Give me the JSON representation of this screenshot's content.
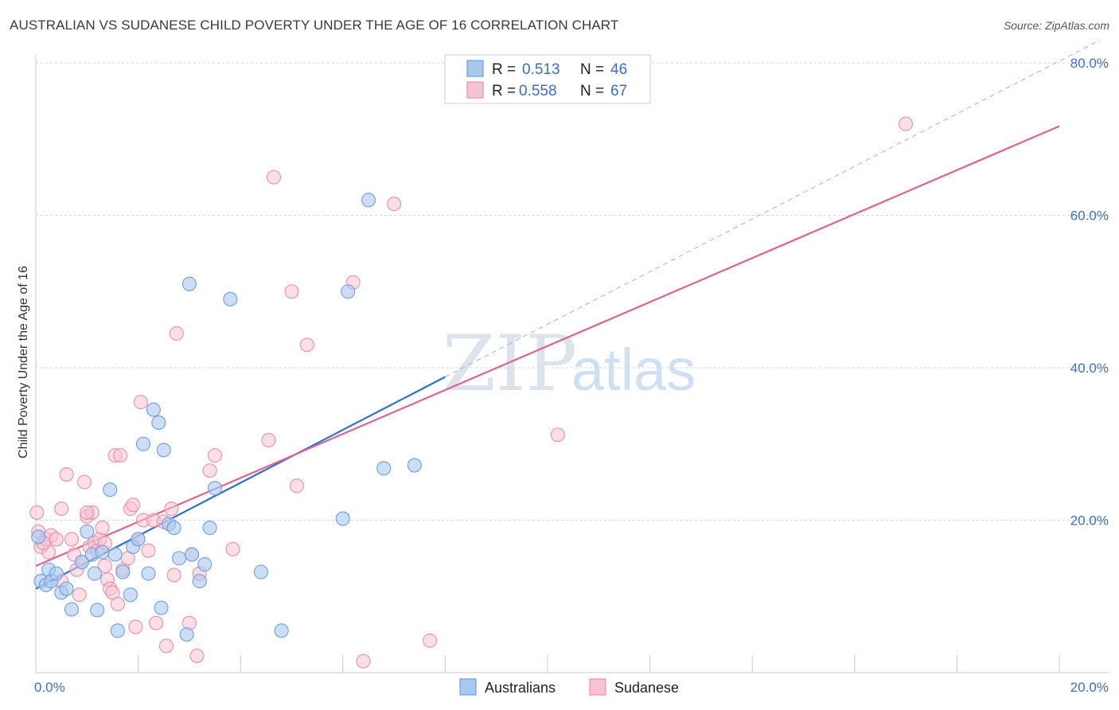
{
  "title": "AUSTRALIAN VS SUDANESE CHILD POVERTY UNDER THE AGE OF 16 CORRELATION CHART",
  "source": "Source: ZipAtlas.com",
  "watermark": {
    "part1": "ZIP",
    "part2": "atlas"
  },
  "colors": {
    "australians_fill": "#a9c8f0",
    "australians_stroke": "#6f9fdc",
    "australians_line": "#2f6fd0",
    "sudanese_fill": "#f7c3d2",
    "sudanese_stroke": "#ec8fab",
    "sudanese_line": "#e0628e",
    "tick_text": "#3b6fc7",
    "grid": "#d6d6d6"
  },
  "legend": {
    "r_label": "R =",
    "n_label": "N =",
    "rows": [
      {
        "series": "Australians",
        "r": "0.513",
        "n": "46"
      },
      {
        "series": "Sudanese",
        "r": "0.558",
        "n": "67"
      }
    ]
  },
  "chart_data": {
    "type": "scatter",
    "title": "AUSTRALIAN VS SUDANESE CHILD POVERTY UNDER THE AGE OF 16 CORRELATION CHART",
    "xlabel": "",
    "ylabel": "Child Poverty Under the Age of 16",
    "xlim": [
      0,
      20
    ],
    "ylim": [
      0,
      80
    ],
    "x_tick_labels": [
      "0.0%",
      "20.0%"
    ],
    "y_ticks": [
      20,
      40,
      60,
      80
    ],
    "y_tick_labels": [
      "20.0%",
      "40.0%",
      "60.0%",
      "80.0%"
    ],
    "series": [
      {
        "name": "Australians",
        "points": [
          [
            0.05,
            17.8
          ],
          [
            0.1,
            12.0
          ],
          [
            0.2,
            11.5
          ],
          [
            0.25,
            13.5
          ],
          [
            0.3,
            12.0
          ],
          [
            0.4,
            13.0
          ],
          [
            0.5,
            10.5
          ],
          [
            0.6,
            11.0
          ],
          [
            0.7,
            8.3
          ],
          [
            0.9,
            14.5
          ],
          [
            1.0,
            18.5
          ],
          [
            1.1,
            15.5
          ],
          [
            1.15,
            13.0
          ],
          [
            1.2,
            8.2
          ],
          [
            1.3,
            15.8
          ],
          [
            1.45,
            24.0
          ],
          [
            1.55,
            15.5
          ],
          [
            1.6,
            5.5
          ],
          [
            1.7,
            13.2
          ],
          [
            1.85,
            10.2
          ],
          [
            1.9,
            16.5
          ],
          [
            2.0,
            17.5
          ],
          [
            2.1,
            30.0
          ],
          [
            2.2,
            13.0
          ],
          [
            2.3,
            34.5
          ],
          [
            2.4,
            32.8
          ],
          [
            2.45,
            8.5
          ],
          [
            2.5,
            29.2
          ],
          [
            2.6,
            19.5
          ],
          [
            2.7,
            19.0
          ],
          [
            2.8,
            15.0
          ],
          [
            2.95,
            5.0
          ],
          [
            3.0,
            51.0
          ],
          [
            3.05,
            15.5
          ],
          [
            3.2,
            12.0
          ],
          [
            3.3,
            14.2
          ],
          [
            3.4,
            19.0
          ],
          [
            3.5,
            24.2
          ],
          [
            3.8,
            49.0
          ],
          [
            4.4,
            13.2
          ],
          [
            4.8,
            5.5
          ],
          [
            6.0,
            20.2
          ],
          [
            6.1,
            50.0
          ],
          [
            6.5,
            62.0
          ],
          [
            6.8,
            26.8
          ],
          [
            7.4,
            27.2
          ]
        ]
      },
      {
        "name": "Sudanese",
        "points": [
          [
            0.02,
            21.0
          ],
          [
            0.05,
            18.5
          ],
          [
            0.1,
            16.5
          ],
          [
            0.2,
            17.5
          ],
          [
            0.25,
            15.8
          ],
          [
            0.3,
            18.0
          ],
          [
            0.4,
            17.5
          ],
          [
            0.5,
            12.0
          ],
          [
            0.5,
            21.5
          ],
          [
            0.6,
            26.0
          ],
          [
            0.7,
            17.5
          ],
          [
            0.75,
            15.5
          ],
          [
            0.8,
            13.5
          ],
          [
            0.85,
            10.2
          ],
          [
            0.9,
            14.5
          ],
          [
            0.95,
            25.0
          ],
          [
            1.0,
            20.5
          ],
          [
            1.05,
            16.5
          ],
          [
            1.1,
            21.0
          ],
          [
            1.15,
            17.0
          ],
          [
            1.2,
            16.0
          ],
          [
            1.25,
            17.5
          ],
          [
            1.3,
            19.0
          ],
          [
            1.35,
            14.0
          ],
          [
            1.4,
            12.2
          ],
          [
            1.45,
            11.0
          ],
          [
            1.5,
            10.5
          ],
          [
            1.55,
            28.5
          ],
          [
            1.6,
            9.0
          ],
          [
            1.65,
            28.5
          ],
          [
            1.7,
            13.5
          ],
          [
            1.8,
            15.0
          ],
          [
            1.85,
            21.5
          ],
          [
            1.9,
            22.0
          ],
          [
            1.95,
            6.0
          ],
          [
            2.0,
            17.5
          ],
          [
            2.05,
            35.5
          ],
          [
            2.1,
            20.0
          ],
          [
            2.2,
            16.0
          ],
          [
            2.3,
            20.0
          ],
          [
            2.35,
            6.5
          ],
          [
            2.5,
            19.8
          ],
          [
            2.55,
            3.5
          ],
          [
            2.65,
            21.5
          ],
          [
            2.7,
            12.8
          ],
          [
            2.75,
            44.5
          ],
          [
            3.0,
            6.5
          ],
          [
            3.05,
            15.5
          ],
          [
            3.15,
            2.2
          ],
          [
            3.2,
            13.0
          ],
          [
            3.4,
            26.5
          ],
          [
            3.5,
            28.5
          ],
          [
            3.85,
            16.2
          ],
          [
            4.55,
            30.5
          ],
          [
            4.65,
            65.0
          ],
          [
            5.0,
            50.0
          ],
          [
            5.1,
            24.5
          ],
          [
            5.3,
            43.0
          ],
          [
            6.2,
            51.2
          ],
          [
            6.4,
            1.5
          ],
          [
            7.0,
            61.5
          ],
          [
            7.7,
            4.2
          ],
          [
            10.2,
            31.2
          ],
          [
            17.0,
            72.0
          ],
          [
            0.15,
            17.0
          ],
          [
            1.0,
            21.0
          ],
          [
            1.35,
            17.0
          ]
        ]
      }
    ],
    "trend_lines": [
      {
        "series": "Australians",
        "x": [
          0.0,
          8.0
        ],
        "y": [
          11.0,
          38.8
        ],
        "style": "solid"
      },
      {
        "series": "Australians",
        "x": [
          8.0,
          20.8
        ],
        "y": [
          38.8,
          83.0
        ],
        "style": "dashed"
      },
      {
        "series": "Sudanese",
        "x": [
          0.0,
          20.0
        ],
        "y": [
          14.0,
          71.7
        ],
        "style": "solid"
      }
    ],
    "legend": [
      {
        "label": "Australians"
      },
      {
        "label": "Sudanese"
      }
    ]
  }
}
